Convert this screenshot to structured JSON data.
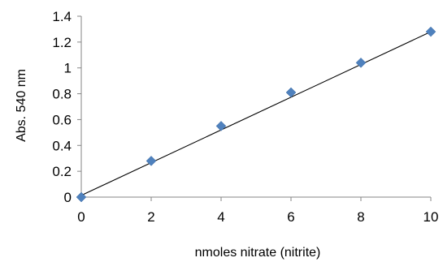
{
  "chart_data": {
    "type": "scatter",
    "title": "",
    "xlabel": "nmoles nitrate (nitrite)",
    "ylabel": "Abs. 540 nm",
    "xlim": [
      0,
      10
    ],
    "ylim": [
      0,
      1.4
    ],
    "x_ticks": [
      "0",
      "2",
      "4",
      "6",
      "8",
      "10"
    ],
    "y_ticks": [
      "0",
      "0.2",
      "0.4",
      "0.6",
      "0.8",
      "1",
      "1.2",
      "1.4"
    ],
    "series": [
      {
        "x": [
          0,
          2,
          4,
          6,
          8,
          10
        ],
        "y": [
          0.0,
          0.28,
          0.55,
          0.81,
          1.04,
          1.28
        ],
        "marker": "diamond",
        "color": "#4f81bd"
      }
    ],
    "trendline": {
      "type": "linear",
      "x": [
        0,
        10
      ],
      "y": [
        0.013,
        1.28
      ],
      "color": "#000000"
    },
    "grid": false,
    "legend": "none"
  }
}
